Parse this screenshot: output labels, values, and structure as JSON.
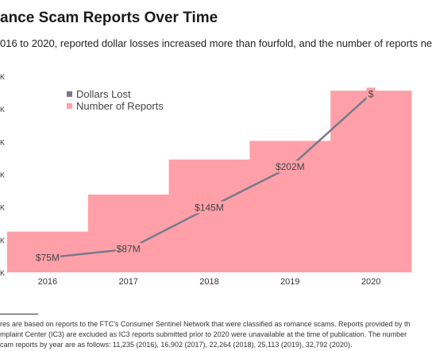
{
  "colors": {
    "reports_fill": "#ffa0a8",
    "dollars_line": "#767a8e",
    "label_text": "#444444"
  },
  "chart_data": {
    "type": "line",
    "title": "ance Scam Reports Over Time",
    "subtitle": "016 to 2020, reported dollar losses increased more than fourfold, and the number of reports ne",
    "categories": [
      "2016",
      "2017",
      "2018",
      "2019",
      "2020"
    ],
    "ytick_labels": [
      "K",
      "K",
      "K",
      "K",
      "K",
      "K",
      "K"
    ],
    "y_left_range": [
      5000,
      35000
    ],
    "legend": {
      "placement": "top-left",
      "items": [
        {
          "name": "Dollars Lost",
          "color": "#767a8e"
        },
        {
          "name": "Number of Reports",
          "color": "#ffa0a8"
        }
      ]
    },
    "series": [
      {
        "name": "Number of Reports",
        "kind": "step-area",
        "axis": "left",
        "values": [
          11235,
          16902,
          22264,
          25113,
          32792
        ]
      },
      {
        "name": "Dollars Lost",
        "kind": "line",
        "axis": "right",
        "unit": "$M",
        "values": [
          75,
          87,
          145,
          202,
          304
        ],
        "labels": [
          "$75M",
          "$87M",
          "$145M",
          "$202M",
          "$"
        ]
      }
    ]
  },
  "footnote": {
    "lines": [
      "res are based on reports to the FTC’s Consumer Sentinel Network that were classified as romance scams. Reports provided by th",
      "mplaint Center (IC3) are excluded as IC3 reports submitted prior to 2020 were unavailable at the time of publication. The number",
      "cam reports by year are as follows: 11,235 (2016), 16,902 (2017), 22,264 (2018), 25,113 (2019), 32,792 (2020)."
    ]
  }
}
